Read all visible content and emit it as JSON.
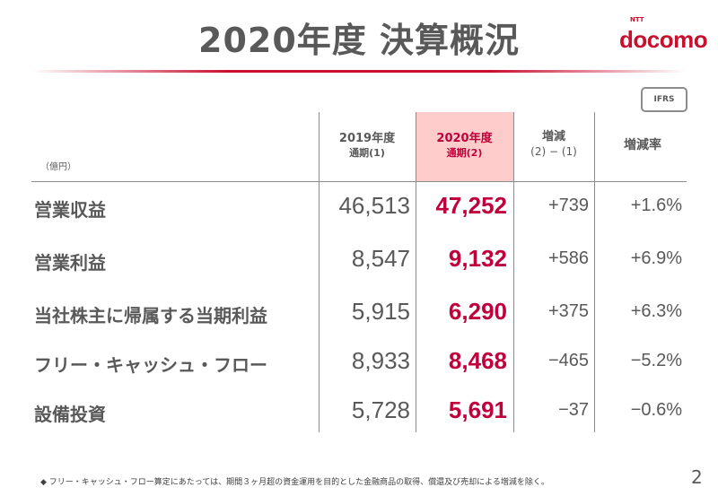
{
  "title": "2020年度 決算概況",
  "logo": {
    "ntt": "NTT",
    "brand": "docomo",
    "color": "#c8102e"
  },
  "badge": "IFRS",
  "unit": "（億円）",
  "columns": [
    {
      "line1": "2019年度",
      "line2": "通期(1)"
    },
    {
      "line1": "2020年度",
      "line2": "通期(2)"
    },
    {
      "line1": "増減",
      "line2": "(2) − (1)"
    },
    {
      "line1": "増減率",
      "line2": ""
    }
  ],
  "rows": [
    {
      "label": "営業収益",
      "fy2019": "46,513",
      "fy2020": "47,252",
      "diff": "+739",
      "rate": "+1.6%"
    },
    {
      "label": "営業利益",
      "fy2019": "8,547",
      "fy2020": "9,132",
      "diff": "+586",
      "rate": "+6.9%"
    },
    {
      "label": "当社株主に帰属する当期利益",
      "fy2019": "5,915",
      "fy2020": "6,290",
      "diff": "+375",
      "rate": "+6.3%"
    },
    {
      "label": "フリー・キャッシュ・フロー",
      "fy2019": "8,933",
      "fy2020": "8,468",
      "diff": "−465",
      "rate": "−5.2%"
    },
    {
      "label": "設備投資",
      "fy2019": "5,728",
      "fy2020": "5,691",
      "diff": "−37",
      "rate": "−0.6%"
    }
  ],
  "footnote": "◆ フリー・キャッシュ・フロー算定にあたっては、期間３ヶ月超の資金運用を目的とした金融商品の取得、償還及び売却による増減を除く。",
  "page_number": "2",
  "colors": {
    "accent": "#c0003a",
    "highlight": "#ffcccc",
    "text": "#595959"
  }
}
